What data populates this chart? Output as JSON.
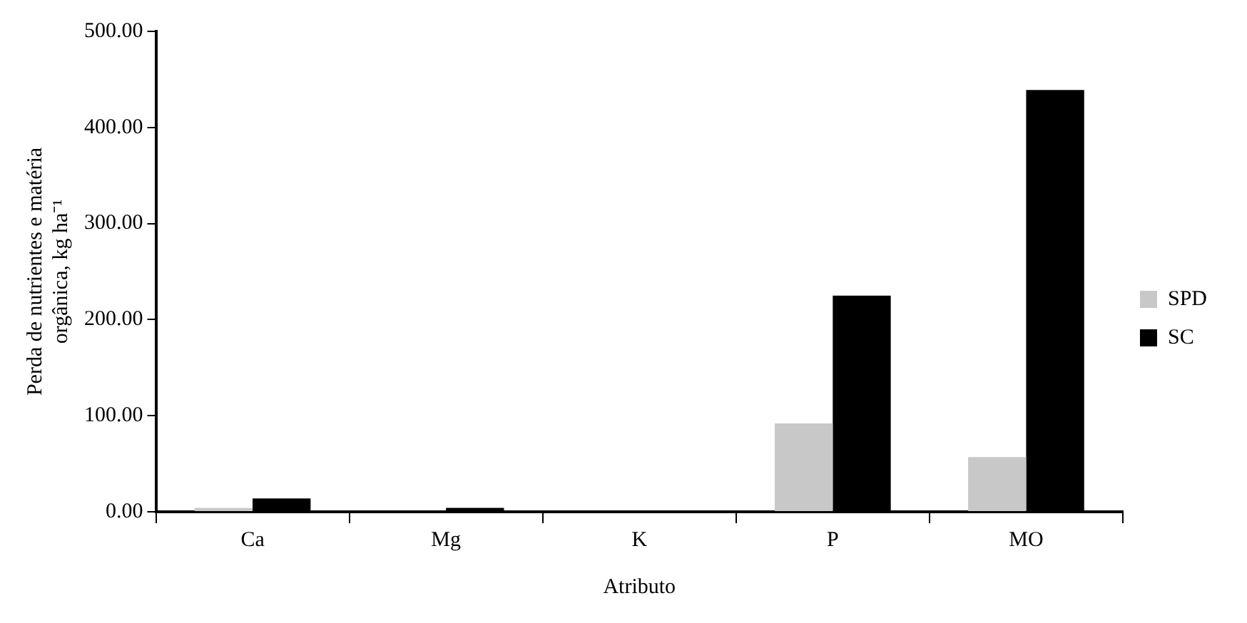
{
  "chart_data": {
    "type": "bar",
    "xlabel": "Atributo",
    "ylabel": "Perda de nutrientes e matéria orgânica, kg ha⁻¹",
    "categories": [
      "Ca",
      "Mg",
      "K",
      "P",
      "MO"
    ],
    "series": [
      {
        "name": "SPD",
        "color": "#c8c8c8",
        "values": [
          4,
          0,
          0,
          92,
          57
        ]
      },
      {
        "name": "SC",
        "color": "#000000",
        "values": [
          14,
          4,
          0,
          225,
          439
        ]
      }
    ],
    "ylim": [
      0,
      500
    ],
    "yticks": [
      {
        "value": 0,
        "label": "0.00"
      },
      {
        "value": 100,
        "label": "100.00"
      },
      {
        "value": 200,
        "label": "200.00"
      },
      {
        "value": 300,
        "label": "300.00"
      },
      {
        "value": 400,
        "label": "400.00"
      },
      {
        "value": 500,
        "label": "500.00"
      }
    ],
    "grid": false,
    "legend": "right"
  }
}
